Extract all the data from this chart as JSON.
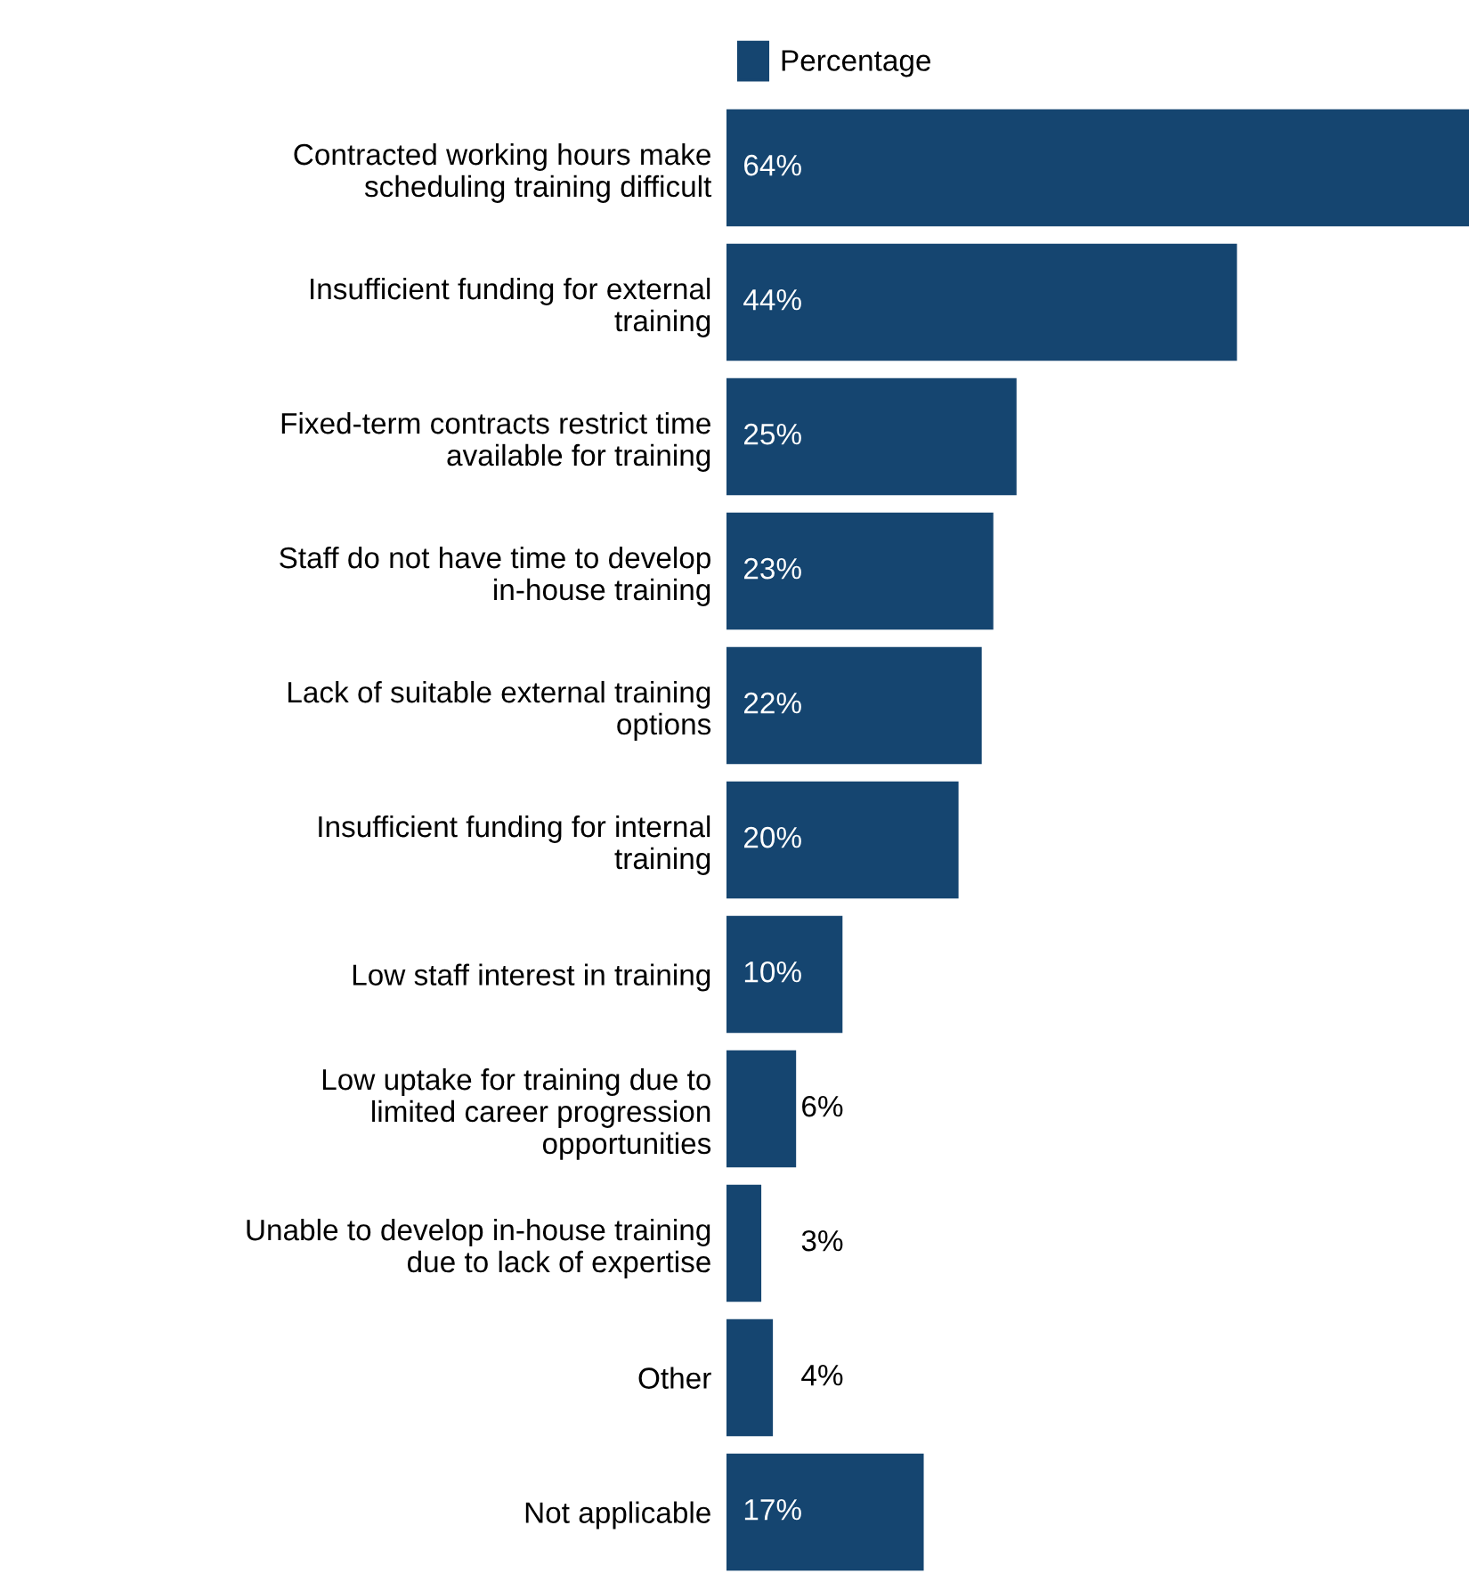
{
  "chart_data": {
    "type": "bar",
    "orientation": "horizontal",
    "legend": "top",
    "categories": [
      "Contracted working hours make\nscheduling training difficult",
      "Insufficient funding for external\ntraining",
      "Fixed-term contracts restrict time\navailable for training",
      "Staff do not have time to develop\nin-house training",
      "Lack of suitable external training\noptions",
      "Insufficient funding for internal\ntraining",
      "Low staff interest in training",
      "Low uptake for training due to\nlimited career progression\nopportunities",
      "Unable to develop in-house training\ndue to lack of expertise",
      "Other",
      "Not applicable"
    ],
    "series": [
      {
        "name": "Percentage",
        "color": "#154570",
        "values": [
          64,
          44,
          25,
          23,
          22,
          20,
          10,
          6,
          3,
          4,
          17
        ],
        "value_labels": [
          "64%",
          "44%",
          "25%",
          "23%",
          "22%",
          "20%",
          "10%",
          "6%",
          "3%",
          "4%",
          "17%"
        ]
      }
    ]
  }
}
